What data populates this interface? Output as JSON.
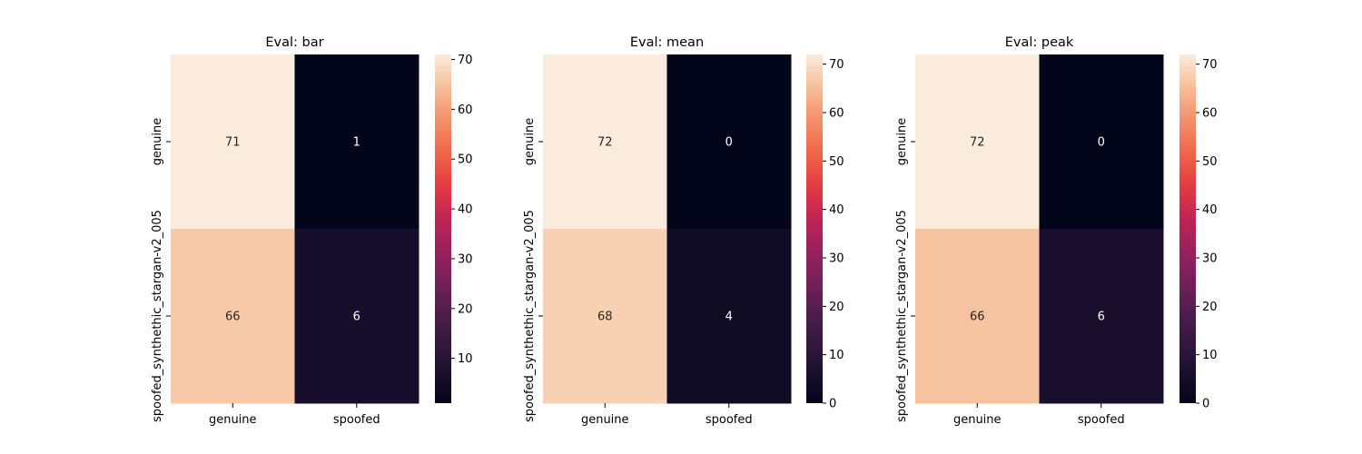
{
  "chart_data": [
    {
      "type": "heatmap",
      "title": "Eval: bar",
      "x_categories": [
        "genuine",
        "spoofed"
      ],
      "y_categories": [
        "genuine",
        "spoofed_synthethic_stargan-v2_005"
      ],
      "values": [
        [
          71,
          1
        ],
        [
          66,
          6
        ]
      ],
      "colorbar": {
        "min": 1,
        "max": 71,
        "ticks": [
          10,
          20,
          30,
          40,
          50,
          60,
          70
        ]
      },
      "colormap": "rocket"
    },
    {
      "type": "heatmap",
      "title": "Eval: mean",
      "x_categories": [
        "genuine",
        "spoofed"
      ],
      "y_categories": [
        "genuine",
        "spoofed_synthethic_stargan-v2_005"
      ],
      "values": [
        [
          72,
          0
        ],
        [
          68,
          4
        ]
      ],
      "colorbar": {
        "min": 0,
        "max": 72,
        "ticks": [
          0,
          10,
          20,
          30,
          40,
          50,
          60,
          70
        ]
      },
      "colormap": "rocket"
    },
    {
      "type": "heatmap",
      "title": "Eval: peak",
      "x_categories": [
        "genuine",
        "spoofed"
      ],
      "y_categories": [
        "genuine",
        "spoofed_synthethic_stargan-v2_005"
      ],
      "values": [
        [
          72,
          0
        ],
        [
          66,
          6
        ]
      ],
      "colorbar": {
        "min": 0,
        "max": 72,
        "ticks": [
          0,
          10,
          20,
          30,
          40,
          50,
          60,
          70
        ]
      },
      "colormap": "rocket"
    }
  ]
}
